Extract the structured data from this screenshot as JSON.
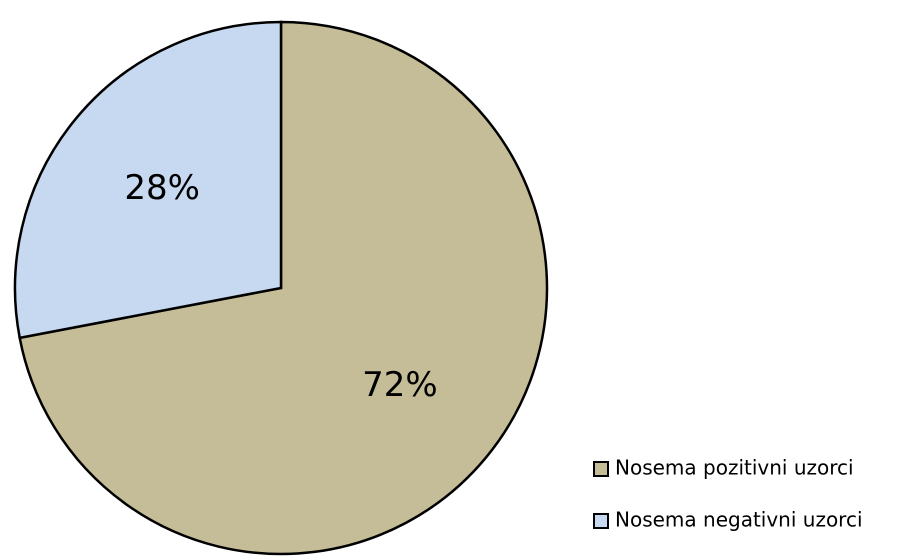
{
  "chart_data": {
    "type": "pie",
    "categories": [
      "Nosema pozitivni uzorci",
      "Nosema negativni uzorci"
    ],
    "values": [
      72,
      28
    ],
    "value_labels": [
      "72%",
      "28%"
    ],
    "colors": [
      "#c4bd97",
      "#c6d9f1"
    ],
    "legend": "bottom-right"
  }
}
